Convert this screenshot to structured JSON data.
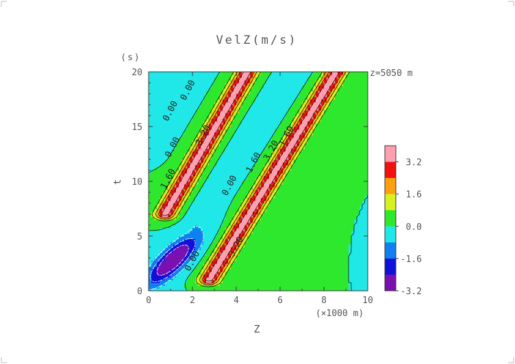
{
  "chart_data": {
    "type": "heatmap",
    "title": "VelZ(m/s)",
    "xlabel": "Z",
    "x_unit": "(×1000 m)",
    "ylabel": "t",
    "y_unit": "(s)",
    "annotation": "z=5050 m",
    "xlim": [
      0,
      10
    ],
    "ylim": [
      0,
      20
    ],
    "x_ticks": [
      "0",
      "2",
      "4",
      "6",
      "8",
      "10"
    ],
    "y_ticks": [
      "0",
      "5",
      "10",
      "15",
      "20"
    ],
    "contour_labels": [
      "0.00",
      "0.00",
      "0.00",
      "1.60",
      "3.20",
      "1.60",
      "3.20",
      "1.60",
      "0.00",
      "3.20",
      "0.00"
    ],
    "colorbar": {
      "levels": [
        {
          "max": -2.4,
          "color": "#7a10b0"
        },
        {
          "max": -1.6,
          "color": "#1010d8"
        },
        {
          "max": -0.8,
          "color": "#1080f0"
        },
        {
          "max": 0.0,
          "color": "#20e8e8"
        },
        {
          "max": 0.8,
          "color": "#2ee82e"
        },
        {
          "max": 1.6,
          "color": "#d8f020"
        },
        {
          "max": 2.4,
          "color": "#ffa010"
        },
        {
          "max": 3.2,
          "color": "#f21010"
        },
        {
          "max": 99,
          "color": "#ffa0b0"
        }
      ],
      "tick_labels": [
        "3.2",
        "1.6",
        "0.0",
        "-1.6",
        "-3.2"
      ]
    },
    "features": [
      {
        "kind": "band",
        "z_start": 0.75,
        "t_start": 7.0,
        "z_end": 4.5,
        "t_end": 20,
        "peak": 3.6,
        "sigma": 0.34
      },
      {
        "kind": "band",
        "z_start": 2.75,
        "t_start": 1.0,
        "z_end": 8.55,
        "t_end": 20,
        "peak": 3.6,
        "sigma": 0.34
      },
      {
        "kind": "blob",
        "z": 1.1,
        "t": 2.8,
        "peak": -3.6,
        "sigma_along": 1.7,
        "sigma_across": 0.45
      },
      {
        "kind": "band",
        "z_start": 0.0,
        "t_start": 12.5,
        "z_end": 2.3,
        "t_end": 20,
        "peak": -0.6,
        "sigma": 0.3
      },
      {
        "kind": "band",
        "z_start": 2.0,
        "t_start": 6.0,
        "z_end": 6.6,
        "t_end": 20,
        "peak": -0.4,
        "sigma": 0.4
      }
    ]
  }
}
